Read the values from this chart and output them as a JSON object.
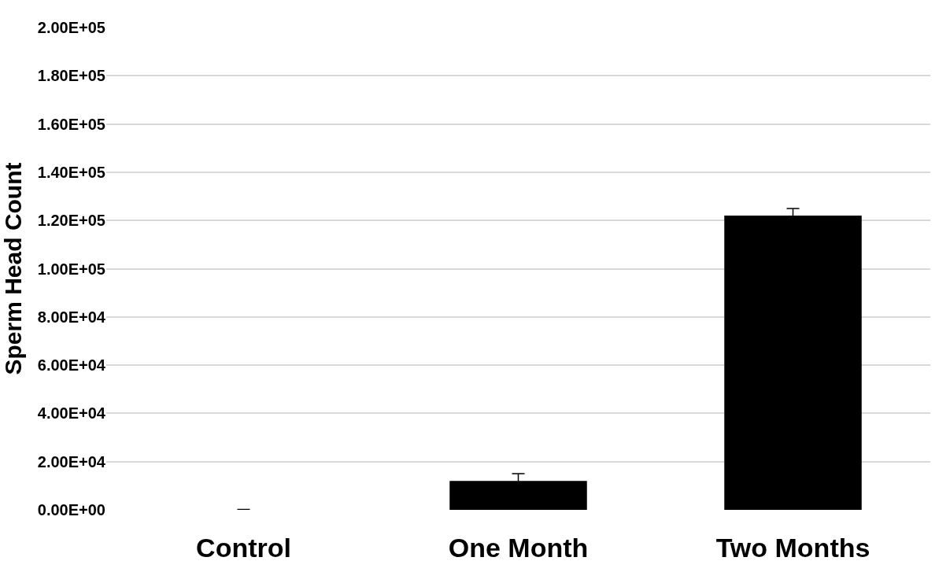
{
  "chart_data": {
    "type": "bar",
    "ylabel": "Sperm Head Count",
    "categories": [
      "Control",
      "One Month",
      "Two Months"
    ],
    "values": [
      0,
      12000,
      122000
    ],
    "errors": [
      200,
      3000,
      3000
    ],
    "color": "#000000",
    "ylim": [
      0,
      200000
    ],
    "yticks": [
      {
        "value": 0,
        "label": "0.00E+00"
      },
      {
        "value": 20000,
        "label": "2.00E+04"
      },
      {
        "value": 40000,
        "label": "4.00E+04"
      },
      {
        "value": 60000,
        "label": "6.00E+04"
      },
      {
        "value": 80000,
        "label": "8.00E+04"
      },
      {
        "value": 100000,
        "label": "1.00E+05"
      },
      {
        "value": 120000,
        "label": "1.20E+05"
      },
      {
        "value": 140000,
        "label": "1.40E+05"
      },
      {
        "value": 160000,
        "label": "1.60E+05"
      },
      {
        "value": 180000,
        "label": "1.80E+05"
      },
      {
        "value": 200000,
        "label": "2.00E+05"
      }
    ],
    "grid": "y"
  }
}
